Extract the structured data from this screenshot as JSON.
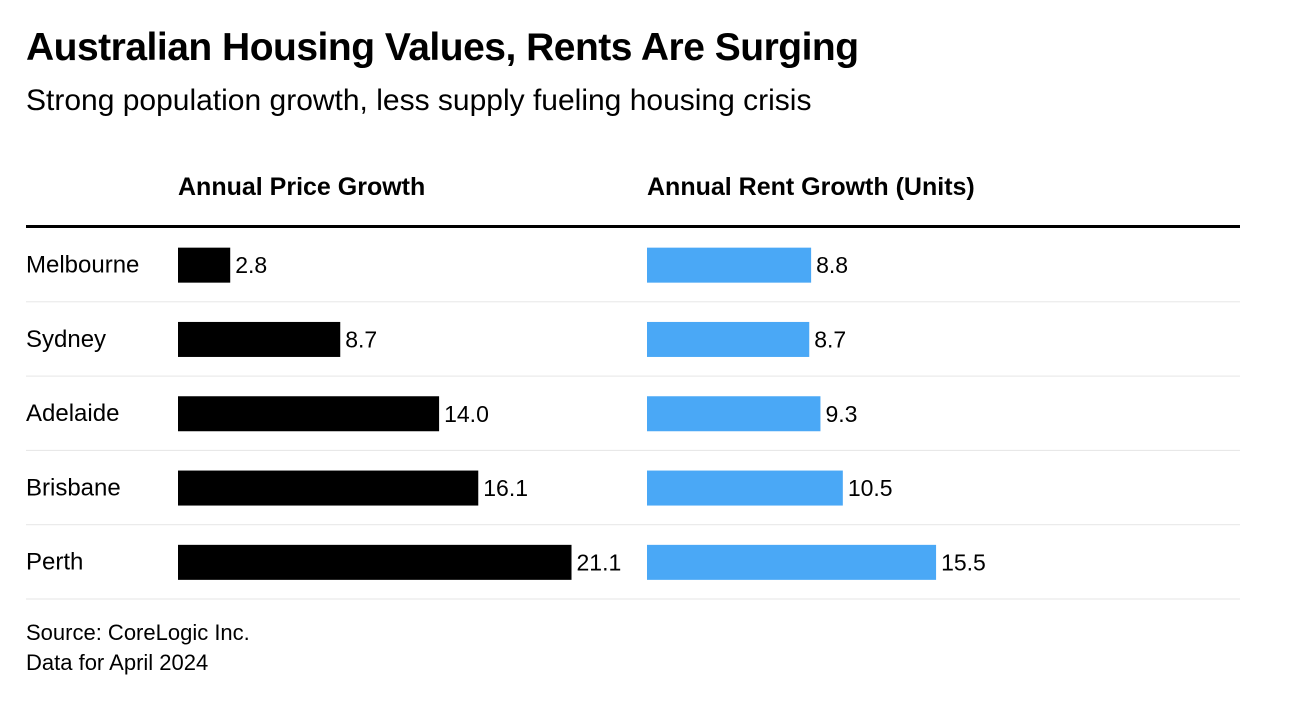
{
  "title": "Australian Housing Values, Rents Are Surging",
  "subtitle": "Strong population growth, less supply fueling housing crisis",
  "source_line1": "Source: CoreLogic Inc.",
  "source_line2": "Data for April 2024",
  "colors": {
    "price_bar": "#000000",
    "rent_bar": "#4aa8f6",
    "divider": "#000000",
    "row_rule": "#e6e6e6"
  },
  "chart_data": {
    "type": "bar",
    "orientation": "horizontal",
    "categories": [
      "Melbourne",
      "Sydney",
      "Adelaide",
      "Brisbane",
      "Perth"
    ],
    "series": [
      {
        "name": "Annual Price Growth",
        "values": [
          2.8,
          8.7,
          14.0,
          16.1,
          21.1
        ],
        "labels": [
          "2.8",
          "8.7",
          "14.0",
          "16.1",
          "21.1"
        ]
      },
      {
        "name": "Annual Rent Growth (Units)",
        "values": [
          8.8,
          8.7,
          9.3,
          10.5,
          15.5
        ],
        "labels": [
          "8.8",
          "8.7",
          "9.3",
          "10.5",
          "15.5"
        ]
      }
    ],
    "grid": false,
    "legend": "none"
  }
}
